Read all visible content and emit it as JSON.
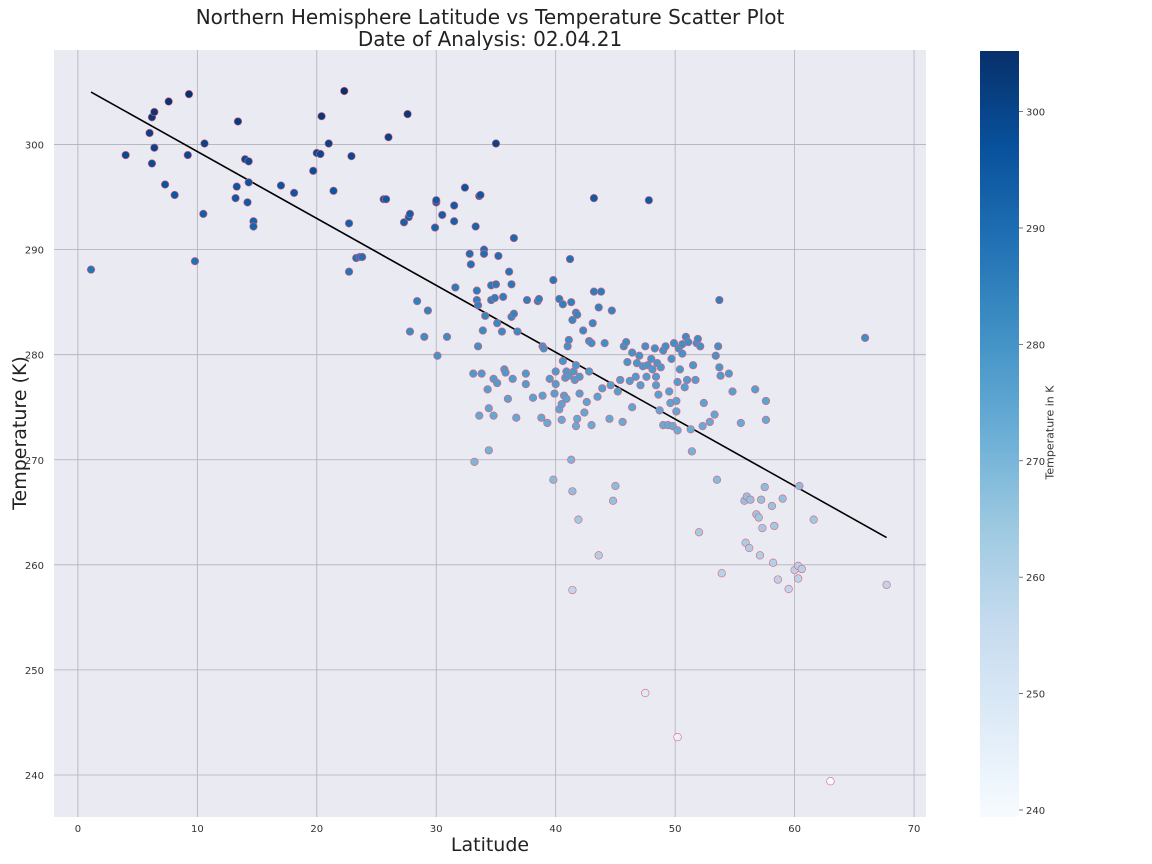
{
  "chart_data": {
    "type": "scatter",
    "title": "Northern Hemisphere Latitude vs Temperature Scatter Plot",
    "subtitle": "Date of Analysis: 02.04.21",
    "xlabel": "Latitude",
    "ylabel": "Temperature (K)",
    "xlim": [
      -2,
      71
    ],
    "ylim": [
      236,
      309
    ],
    "xticks": [
      0,
      10,
      20,
      30,
      40,
      50,
      60,
      70
    ],
    "yticks": [
      240,
      250,
      260,
      270,
      280,
      290,
      300
    ],
    "grid": true,
    "colorbar": {
      "label": "Temperature in K",
      "range": [
        239.4,
        305.2
      ],
      "ticks": [
        240,
        250,
        260,
        270,
        280,
        290,
        300
      ],
      "colormap": "Blues"
    },
    "regression_line": {
      "x": [
        1.1,
        67.7
      ],
      "y": [
        305.0,
        262.6
      ],
      "color": "#000000"
    },
    "point_edge_color": "#e0607a",
    "points": [
      [
        1.1,
        288.1
      ],
      [
        4.0,
        299.0
      ],
      [
        6.0,
        301.1
      ],
      [
        6.2,
        302.6
      ],
      [
        6.4,
        303.1
      ],
      [
        6.2,
        298.2
      ],
      [
        6.4,
        299.7
      ],
      [
        7.3,
        296.2
      ],
      [
        7.6,
        304.1
      ],
      [
        8.1,
        295.2
      ],
      [
        9.2,
        299.0
      ],
      [
        9.3,
        304.8
      ],
      [
        9.8,
        288.9
      ],
      [
        10.5,
        293.4
      ],
      [
        10.6,
        300.1
      ],
      [
        13.2,
        294.9
      ],
      [
        13.3,
        296.0
      ],
      [
        13.4,
        302.2
      ],
      [
        14.0,
        298.6
      ],
      [
        14.2,
        294.5
      ],
      [
        14.3,
        296.4
      ],
      [
        14.3,
        298.4
      ],
      [
        14.7,
        292.7
      ],
      [
        14.7,
        292.2
      ],
      [
        17.0,
        296.1
      ],
      [
        18.1,
        295.4
      ],
      [
        19.7,
        297.5
      ],
      [
        20.0,
        299.2
      ],
      [
        20.3,
        299.1
      ],
      [
        20.4,
        302.7
      ],
      [
        21.0,
        300.1
      ],
      [
        21.4,
        295.6
      ],
      [
        22.3,
        305.1
      ],
      [
        22.7,
        292.5
      ],
      [
        22.7,
        287.9
      ],
      [
        22.9,
        298.9
      ],
      [
        23.3,
        289.2
      ],
      [
        23.6,
        289.3
      ],
      [
        23.8,
        289.3
      ],
      [
        25.6,
        294.8
      ],
      [
        25.8,
        294.8
      ],
      [
        26.0,
        300.7
      ],
      [
        27.3,
        292.6
      ],
      [
        27.6,
        302.9
      ],
      [
        27.7,
        293.1
      ],
      [
        27.8,
        293.4
      ],
      [
        27.8,
        282.2
      ],
      [
        28.4,
        285.1
      ],
      [
        29.0,
        281.7
      ],
      [
        29.3,
        284.2
      ],
      [
        29.9,
        292.1
      ],
      [
        30.0,
        294.5
      ],
      [
        30.0,
        294.7
      ],
      [
        30.1,
        279.9
      ],
      [
        30.5,
        293.3
      ],
      [
        30.9,
        281.7
      ],
      [
        31.5,
        292.7
      ],
      [
        31.5,
        294.2
      ],
      [
        31.6,
        286.4
      ],
      [
        32.4,
        295.9
      ],
      [
        32.8,
        289.6
      ],
      [
        32.9,
        288.6
      ],
      [
        33.1,
        278.2
      ],
      [
        33.2,
        269.8
      ],
      [
        33.4,
        286.1
      ],
      [
        33.4,
        285.2
      ],
      [
        33.5,
        284.7
      ],
      [
        33.5,
        280.8
      ],
      [
        33.6,
        295.1
      ],
      [
        33.7,
        295.2
      ],
      [
        33.3,
        292.2
      ],
      [
        33.6,
        274.2
      ],
      [
        33.8,
        278.2
      ],
      [
        33.9,
        282.3
      ],
      [
        34.0,
        290.0
      ],
      [
        34.0,
        289.6
      ],
      [
        34.1,
        283.7
      ],
      [
        34.3,
        276.7
      ],
      [
        34.4,
        270.9
      ],
      [
        34.4,
        274.9
      ],
      [
        34.6,
        285.2
      ],
      [
        34.6,
        286.6
      ],
      [
        34.8,
        274.2
      ],
      [
        34.8,
        277.7
      ],
      [
        34.9,
        285.4
      ],
      [
        35.0,
        286.7
      ],
      [
        35.1,
        277.3
      ],
      [
        35.1,
        283.0
      ],
      [
        35.0,
        300.1
      ],
      [
        35.2,
        289.4
      ],
      [
        35.5,
        282.2
      ],
      [
        35.6,
        285.5
      ],
      [
        35.7,
        278.6
      ],
      [
        35.8,
        278.3
      ],
      [
        36.0,
        275.8
      ],
      [
        36.1,
        287.9
      ],
      [
        36.3,
        283.6
      ],
      [
        36.3,
        286.7
      ],
      [
        36.5,
        291.1
      ],
      [
        36.5,
        283.9
      ],
      [
        36.4,
        277.7
      ],
      [
        36.7,
        274.0
      ],
      [
        36.8,
        282.2
      ],
      [
        37.5,
        278.2
      ],
      [
        37.5,
        277.2
      ],
      [
        37.6,
        285.2
      ],
      [
        38.1,
        275.9
      ],
      [
        38.5,
        285.1
      ],
      [
        38.6,
        285.3
      ],
      [
        38.9,
        280.8
      ],
      [
        38.8,
        274.0
      ],
      [
        38.9,
        276.1
      ],
      [
        39.0,
        280.6
      ],
      [
        39.3,
        273.5
      ],
      [
        39.5,
        277.7
      ],
      [
        39.8,
        287.1
      ],
      [
        39.8,
        268.1
      ],
      [
        39.9,
        276.3
      ],
      [
        40.0,
        277.2
      ],
      [
        40.0,
        278.4
      ],
      [
        40.3,
        285.3
      ],
      [
        40.3,
        274.8
      ],
      [
        40.5,
        273.8
      ],
      [
        40.5,
        275.3
      ],
      [
        40.6,
        284.8
      ],
      [
        40.6,
        279.4
      ],
      [
        40.7,
        276.1
      ],
      [
        40.8,
        277.8
      ],
      [
        40.9,
        278.4
      ],
      [
        40.9,
        275.8
      ],
      [
        41.0,
        280.8
      ],
      [
        41.1,
        278.0
      ],
      [
        41.1,
        281.4
      ],
      [
        41.2,
        289.1
      ],
      [
        41.3,
        270.0
      ],
      [
        41.3,
        285.0
      ],
      [
        41.4,
        267.0
      ],
      [
        41.4,
        257.6
      ],
      [
        41.4,
        283.3
      ],
      [
        41.5,
        278.4
      ],
      [
        41.6,
        277.6
      ],
      [
        41.7,
        279.0
      ],
      [
        41.7,
        284.0
      ],
      [
        41.8,
        273.9
      ],
      [
        41.7,
        273.2
      ],
      [
        41.9,
        264.3
      ],
      [
        41.8,
        283.8
      ],
      [
        42.0,
        277.9
      ],
      [
        42.0,
        276.3
      ],
      [
        42.3,
        282.3
      ],
      [
        42.4,
        274.5
      ],
      [
        42.6,
        275.5
      ],
      [
        42.8,
        278.4
      ],
      [
        42.8,
        281.3
      ],
      [
        43.0,
        273.3
      ],
      [
        43.0,
        281.1
      ],
      [
        43.1,
        283.0
      ],
      [
        43.2,
        294.9
      ],
      [
        43.2,
        286.0
      ],
      [
        43.5,
        276.0
      ],
      [
        43.6,
        284.5
      ],
      [
        43.6,
        260.9
      ],
      [
        43.8,
        286.0
      ],
      [
        43.9,
        276.8
      ],
      [
        44.1,
        281.1
      ],
      [
        44.5,
        273.9
      ],
      [
        44.6,
        277.1
      ],
      [
        44.7,
        284.2
      ],
      [
        44.8,
        266.1
      ],
      [
        45.0,
        267.5
      ],
      [
        45.2,
        276.5
      ],
      [
        45.4,
        277.6
      ],
      [
        45.6,
        273.6
      ],
      [
        45.7,
        280.8
      ],
      [
        45.9,
        281.2
      ],
      [
        46.0,
        279.3
      ],
      [
        46.2,
        277.5
      ],
      [
        46.4,
        275.0
      ],
      [
        46.4,
        280.2
      ],
      [
        46.7,
        277.9
      ],
      [
        46.8,
        279.2
      ],
      [
        47.0,
        279.9
      ],
      [
        47.1,
        277.1
      ],
      [
        47.3,
        278.9
      ],
      [
        47.5,
        280.8
      ],
      [
        47.5,
        247.8
      ],
      [
        47.6,
        277.9
      ],
      [
        47.7,
        279.0
      ],
      [
        47.8,
        294.7
      ],
      [
        48.0,
        279.6
      ],
      [
        48.1,
        278.6
      ],
      [
        48.3,
        280.6
      ],
      [
        48.4,
        277.9
      ],
      [
        48.4,
        277.1
      ],
      [
        48.5,
        279.2
      ],
      [
        48.6,
        276.2
      ],
      [
        48.7,
        274.7
      ],
      [
        48.8,
        278.8
      ],
      [
        49.0,
        280.4
      ],
      [
        49.0,
        273.3
      ],
      [
        49.2,
        280.8
      ],
      [
        49.4,
        273.3
      ],
      [
        49.5,
        276.5
      ],
      [
        49.6,
        275.4
      ],
      [
        49.7,
        279.6
      ],
      [
        49.8,
        273.2
      ],
      [
        49.9,
        281.1
      ],
      [
        50.1,
        274.6
      ],
      [
        50.1,
        275.6
      ],
      [
        50.2,
        243.6
      ],
      [
        50.2,
        277.4
      ],
      [
        50.2,
        272.8
      ],
      [
        50.3,
        280.6
      ],
      [
        50.4,
        278.6
      ],
      [
        50.6,
        281.0
      ],
      [
        50.6,
        280.1
      ],
      [
        50.8,
        276.9
      ],
      [
        50.9,
        281.7
      ],
      [
        51.0,
        277.6
      ],
      [
        51.1,
        281.2
      ],
      [
        51.3,
        272.9
      ],
      [
        51.4,
        270.8
      ],
      [
        51.5,
        279.0
      ],
      [
        51.7,
        277.6
      ],
      [
        51.8,
        281.1
      ],
      [
        51.9,
        281.5
      ],
      [
        52.0,
        263.1
      ],
      [
        52.1,
        280.8
      ],
      [
        52.3,
        273.2
      ],
      [
        52.4,
        275.4
      ],
      [
        52.9,
        273.6
      ],
      [
        53.3,
        274.3
      ],
      [
        53.4,
        279.9
      ],
      [
        53.5,
        268.1
      ],
      [
        53.6,
        280.8
      ],
      [
        53.7,
        285.2
      ],
      [
        53.7,
        278.8
      ],
      [
        53.8,
        278.0
      ],
      [
        53.9,
        259.2
      ],
      [
        54.5,
        278.2
      ],
      [
        54.8,
        276.5
      ],
      [
        55.5,
        273.5
      ],
      [
        55.8,
        266.1
      ],
      [
        55.9,
        262.1
      ],
      [
        56.0,
        266.5
      ],
      [
        56.2,
        261.6
      ],
      [
        56.3,
        266.2
      ],
      [
        56.7,
        276.7
      ],
      [
        56.8,
        264.8
      ],
      [
        57.0,
        264.5
      ],
      [
        57.1,
        260.9
      ],
      [
        57.2,
        266.2
      ],
      [
        57.3,
        263.5
      ],
      [
        57.5,
        267.4
      ],
      [
        57.6,
        275.6
      ],
      [
        57.6,
        273.8
      ],
      [
        58.1,
        265.6
      ],
      [
        58.2,
        260.2
      ],
      [
        58.3,
        263.7
      ],
      [
        58.6,
        258.6
      ],
      [
        59.0,
        266.3
      ],
      [
        59.5,
        257.7
      ],
      [
        60.0,
        259.5
      ],
      [
        60.3,
        259.9
      ],
      [
        60.4,
        267.5
      ],
      [
        60.3,
        258.7
      ],
      [
        60.6,
        259.6
      ],
      [
        61.6,
        264.3
      ],
      [
        63.0,
        239.4
      ],
      [
        65.9,
        281.6
      ],
      [
        67.7,
        258.1
      ]
    ]
  }
}
